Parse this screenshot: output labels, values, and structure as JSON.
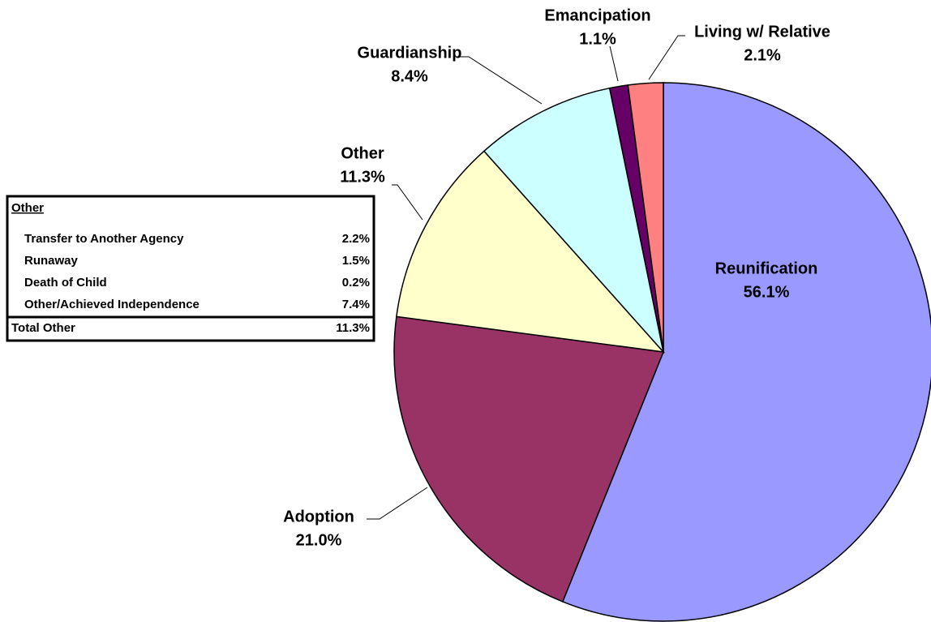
{
  "chart_data": {
    "type": "pie",
    "categories": [
      "Reunification",
      "Adoption",
      "Other",
      "Guardianship",
      "Emancipation",
      "Living w/ Relative"
    ],
    "values": [
      56.1,
      21.0,
      11.3,
      8.4,
      1.1,
      2.1
    ],
    "value_labels": [
      "56.1%",
      "21.0%",
      "11.3%",
      "8.4%",
      "1.1%",
      "2.1%"
    ],
    "colors": [
      "#9999ff",
      "#993366",
      "#ffffcc",
      "#ccffff",
      "#660066",
      "#ff8080"
    ]
  },
  "table": {
    "title": "Other",
    "rows": [
      [
        "Transfer to Another Agency",
        "2.2%"
      ],
      [
        "Runaway",
        "1.5%"
      ],
      [
        "Death of Child",
        "0.2%"
      ],
      [
        "Other/Achieved Independence",
        "7.4%"
      ]
    ],
    "total": [
      "Total Other",
      "11.3%"
    ]
  }
}
